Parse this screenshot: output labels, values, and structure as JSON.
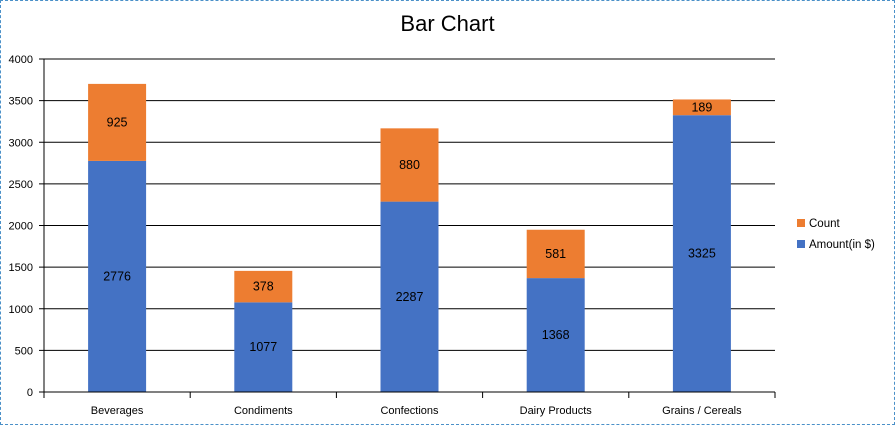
{
  "chart_data": {
    "type": "bar",
    "stacked": true,
    "title": "Bar Chart",
    "xlabel": "",
    "ylabel": "",
    "ylim": [
      0,
      4000
    ],
    "yticks": [
      0,
      500,
      1000,
      1500,
      2000,
      2500,
      3000,
      3500,
      4000
    ],
    "grid": true,
    "legend_position": "right",
    "categories": [
      "Beverages",
      "Condiments",
      "Confections",
      "Dairy Products",
      "Grains / Cereals"
    ],
    "series": [
      {
        "name": "Amount(in $)",
        "color": "#4472C4",
        "values": [
          2776,
          1077,
          2287,
          1368,
          3325
        ]
      },
      {
        "name": "Count",
        "color": "#ED7D31",
        "values": [
          925,
          378,
          880,
          581,
          189
        ]
      }
    ]
  }
}
